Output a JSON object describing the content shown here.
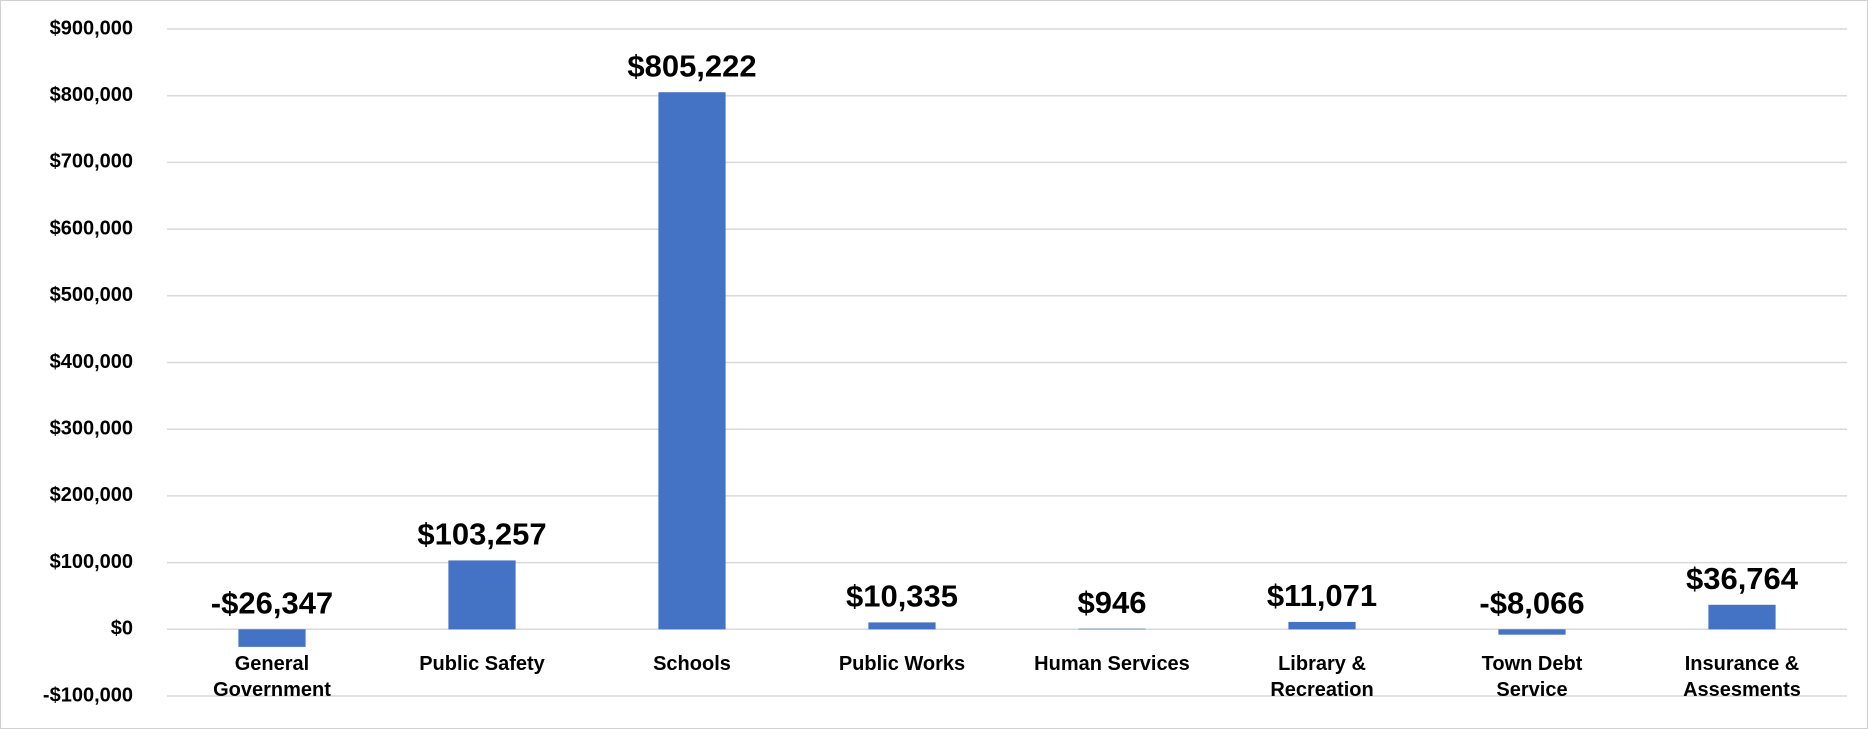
{
  "chart_data": {
    "type": "bar",
    "categories": [
      "General Government",
      "Public Safety",
      "Schools",
      "Public Works",
      "Human Services",
      "Library & Recreation",
      "Town Debt Service",
      "Insurance & Assesments"
    ],
    "values": [
      -26347,
      103257,
      805222,
      10335,
      946,
      11071,
      -8066,
      36764
    ],
    "value_labels": [
      "-$26,347",
      "$103,257",
      "$805,222",
      "$10,335",
      "$946",
      "$11,071",
      "-$8,066",
      "$36,764"
    ],
    "color": "#4472c4",
    "ylim": [
      -100000,
      900000
    ],
    "yticks": [
      {
        "value": -100000,
        "label": "-$100,000"
      },
      {
        "value": 0,
        "label": "$0"
      },
      {
        "value": 100000,
        "label": "$100,000"
      },
      {
        "value": 200000,
        "label": "$200,000"
      },
      {
        "value": 300000,
        "label": "$300,000"
      },
      {
        "value": 400000,
        "label": "$400,000"
      },
      {
        "value": 500000,
        "label": "$500,000"
      },
      {
        "value": 600000,
        "label": "$600,000"
      },
      {
        "value": 700000,
        "label": "$700,000"
      },
      {
        "value": 800000,
        "label": "$800,000"
      },
      {
        "value": 900000,
        "label": "$900,000"
      }
    ],
    "grid": true
  }
}
